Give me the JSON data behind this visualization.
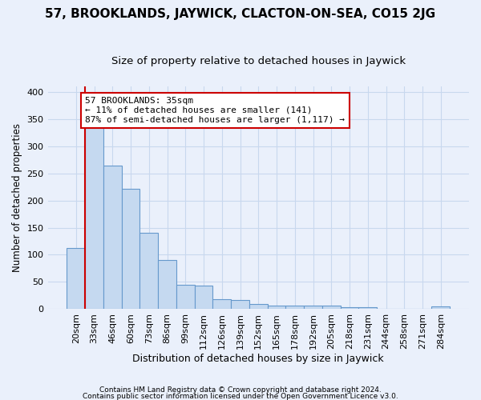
{
  "title": "57, BROOKLANDS, JAYWICK, CLACTON-ON-SEA, CO15 2JG",
  "subtitle": "Size of property relative to detached houses in Jaywick",
  "xlabel": "Distribution of detached houses by size in Jaywick",
  "ylabel": "Number of detached properties",
  "footnote1": "Contains HM Land Registry data © Crown copyright and database right 2024.",
  "footnote2": "Contains public sector information licensed under the Open Government Licence v3.0.",
  "categories": [
    "20sqm",
    "33sqm",
    "46sqm",
    "60sqm",
    "73sqm",
    "86sqm",
    "99sqm",
    "112sqm",
    "126sqm",
    "139sqm",
    "152sqm",
    "165sqm",
    "178sqm",
    "192sqm",
    "205sqm",
    "218sqm",
    "231sqm",
    "244sqm",
    "258sqm",
    "271sqm",
    "284sqm"
  ],
  "values": [
    113,
    334,
    264,
    221,
    140,
    91,
    45,
    43,
    18,
    17,
    9,
    6,
    7,
    6,
    6,
    3,
    3,
    0,
    0,
    0,
    5
  ],
  "bar_color": "#c5d9f0",
  "bar_edge_color": "#6699cc",
  "highlight_color": "#cc0000",
  "annotation_text": "57 BROOKLANDS: 35sqm\n← 11% of detached houses are smaller (141)\n87% of semi-detached houses are larger (1,117) →",
  "annotation_box_color": "#ffffff",
  "annotation_box_edge_color": "#cc0000",
  "vline_x_index": 1,
  "ylim": [
    0,
    410
  ],
  "yticks": [
    0,
    50,
    100,
    150,
    200,
    250,
    300,
    350,
    400
  ],
  "bg_color": "#eaf0fb",
  "plot_bg_color": "#eaf0fb",
  "grid_color": "#c8d8ee",
  "title_fontsize": 11,
  "subtitle_fontsize": 9.5,
  "xlabel_fontsize": 9,
  "ylabel_fontsize": 8.5,
  "tick_fontsize": 8,
  "annotation_fontsize": 8,
  "footnote_fontsize": 6.5
}
